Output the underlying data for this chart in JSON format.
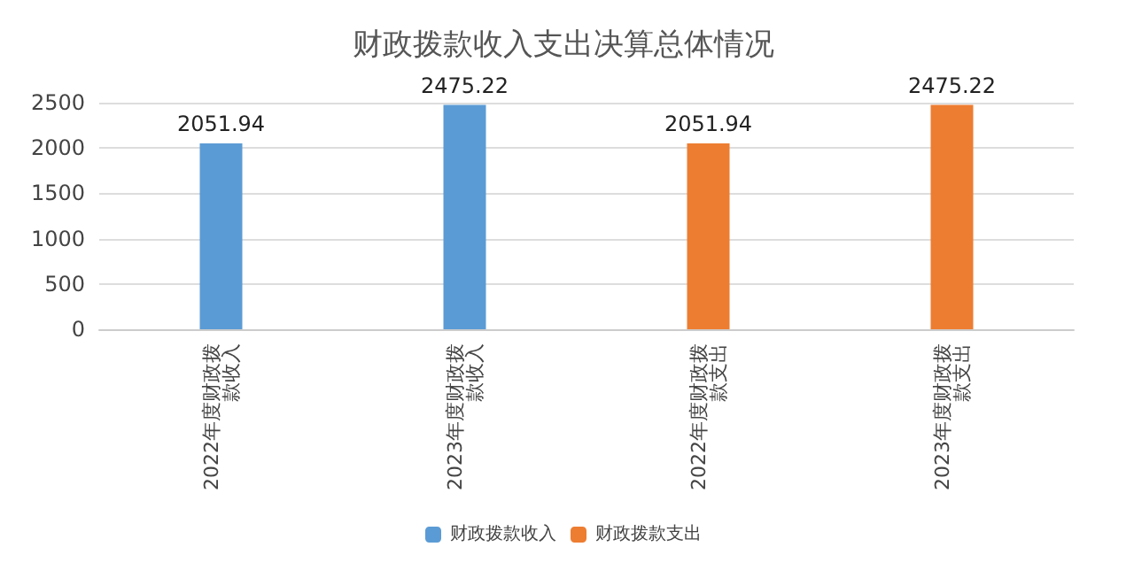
{
  "chart_data": {
    "type": "bar",
    "title": "财政拨款收入支出决算总体情况",
    "categories": [
      "2022年度财政拨款收入",
      "2023年度财政拨款收入",
      "2022年度财政拨款支出",
      "2023年度财政拨款支出"
    ],
    "series": [
      {
        "name": "财政拨款收入",
        "color": "#5b9bd5",
        "values": [
          2051.94,
          2475.22,
          null,
          null
        ]
      },
      {
        "name": "财政拨款支出",
        "color": "#ed7d31",
        "values": [
          null,
          null,
          2051.94,
          2475.22
        ]
      }
    ],
    "ylim": [
      0,
      2500
    ],
    "yticks": [
      0,
      500,
      1000,
      1500,
      2000,
      2500
    ],
    "grid": "y",
    "legend": "bottom",
    "data_labels": true
  }
}
